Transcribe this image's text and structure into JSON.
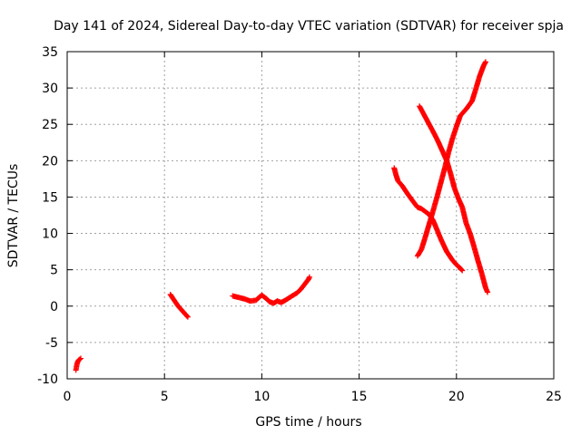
{
  "chart_data": {
    "type": "scatter",
    "title": "Day 141 of 2024, Sidereal Day-to-day VTEC variation (SDTVAR) for receiver spja",
    "xlabel": "GPS time / hours",
    "ylabel": "SDTVAR / TECUs",
    "xlim": [
      0,
      25
    ],
    "ylim": [
      -10,
      35
    ],
    "xticks": [
      0,
      5,
      10,
      15,
      20,
      25
    ],
    "yticks": [
      -10,
      -5,
      0,
      5,
      10,
      15,
      20,
      25,
      30,
      35
    ],
    "xtick_labels": [
      "0",
      "5",
      "10",
      "15",
      "20",
      "25"
    ],
    "ytick_labels": [
      "-10",
      "-5",
      "0",
      "5",
      "10",
      "15",
      "20",
      "25",
      "30",
      "35"
    ],
    "grid": true,
    "marker": "plus",
    "series": [
      {
        "color": "#ff0000",
        "tracks": [
          {
            "x": [
              0.45,
              0.5,
              0.55,
              0.6,
              0.7
            ],
            "y": [
              -8.8,
              -8.0,
              -7.6,
              -7.4,
              -7.2
            ]
          },
          {
            "x": [
              5.3,
              5.5,
              5.7,
              5.9,
              6.1,
              6.2
            ],
            "y": [
              1.6,
              0.8,
              0.0,
              -0.6,
              -1.2,
              -1.5
            ]
          },
          {
            "x": [
              8.5,
              8.8,
              9.1,
              9.4,
              9.7,
              9.9,
              10.0,
              10.2,
              10.4,
              10.6,
              10.8,
              11.0,
              11.2,
              11.5,
              11.8,
              12.0,
              12.2,
              12.4,
              12.45
            ],
            "y": [
              1.4,
              1.2,
              1.0,
              0.7,
              0.8,
              1.3,
              1.5,
              1.1,
              0.6,
              0.4,
              0.7,
              0.5,
              0.8,
              1.3,
              1.8,
              2.3,
              3.0,
              3.7,
              4.0
            ]
          },
          {
            "x": [
              16.8,
              16.9,
              17.0,
              17.2,
              17.5,
              17.8,
              18.0,
              18.2,
              18.4,
              18.6,
              18.8,
              19.0,
              19.2,
              19.5,
              19.8,
              20.0,
              20.2,
              20.3
            ],
            "y": [
              19.0,
              18.0,
              17.2,
              16.6,
              15.4,
              14.3,
              13.6,
              13.4,
              13.0,
              12.6,
              11.8,
              10.5,
              9.2,
              7.5,
              6.3,
              5.7,
              5.2,
              4.9
            ]
          },
          {
            "x": [
              18.1,
              18.3,
              18.6,
              18.9,
              19.1,
              19.3,
              19.5,
              19.7,
              19.9,
              20.1,
              20.3,
              20.5,
              20.7,
              20.9,
              21.1,
              21.3,
              21.5,
              21.6
            ],
            "y": [
              27.5,
              26.5,
              25.0,
              23.5,
              22.4,
              21.2,
              20.0,
              18.2,
              16.2,
              14.8,
              13.6,
              11.4,
              10.0,
              8.2,
              6.3,
              4.5,
              2.5,
              1.9
            ]
          },
          {
            "x": [
              18.0,
              18.2,
              18.4,
              18.6,
              18.8,
              19.0,
              19.2,
              19.4,
              19.6,
              19.8,
              20.0,
              20.2,
              20.5,
              20.8,
              21.0,
              21.2,
              21.4,
              21.5
            ],
            "y": [
              6.9,
              7.8,
              9.5,
              11.3,
              13.1,
              15.0,
              17.0,
              19.0,
              21.2,
              23.1,
              24.7,
              26.2,
              27.1,
              28.2,
              29.9,
              31.7,
              33.1,
              33.6
            ]
          }
        ]
      }
    ]
  }
}
